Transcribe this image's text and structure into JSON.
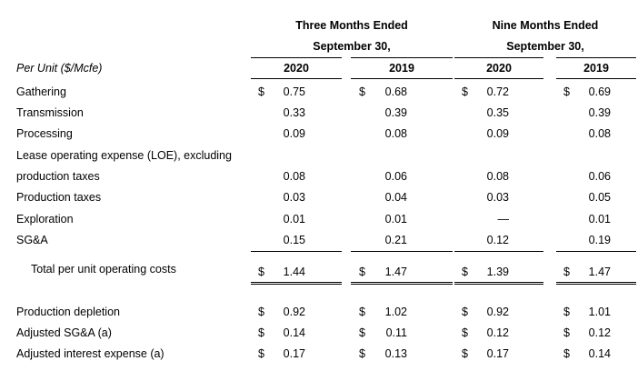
{
  "header": {
    "three_months_line1": "Three Months Ended",
    "three_months_line2": "September 30,",
    "nine_months_line1": "Nine Months Ended",
    "nine_months_line2": "September 30,",
    "per_unit_label": "Per Unit ($/Mcfe)",
    "years": [
      "2020",
      "2019",
      "2020",
      "2019"
    ]
  },
  "rows": [
    {
      "label": "Gathering",
      "dollar": [
        "$",
        "$",
        "$",
        "$"
      ],
      "values": [
        "0.75",
        "0.68",
        "0.72",
        "0.69"
      ]
    },
    {
      "label": "Transmission",
      "dollar": [
        "",
        "",
        "",
        ""
      ],
      "values": [
        "0.33",
        "0.39",
        "0.35",
        "0.39"
      ]
    },
    {
      "label": "Processing",
      "dollar": [
        "",
        "",
        "",
        ""
      ],
      "values": [
        "0.09",
        "0.08",
        "0.09",
        "0.08"
      ]
    },
    {
      "label": "Lease operating expense (LOE), excluding",
      "dollar": [
        "",
        "",
        "",
        ""
      ],
      "values": [
        "",
        "",
        "",
        ""
      ]
    },
    {
      "label": "production taxes",
      "dollar": [
        "",
        "",
        "",
        ""
      ],
      "values": [
        "0.08",
        "0.06",
        "0.08",
        "0.06"
      ]
    },
    {
      "label": "Production taxes",
      "dollar": [
        "",
        "",
        "",
        ""
      ],
      "values": [
        "0.03",
        "0.04",
        "0.03",
        "0.05"
      ]
    },
    {
      "label": "Exploration",
      "dollar": [
        "",
        "",
        "",
        ""
      ],
      "values": [
        "0.01",
        "0.01",
        "—",
        "0.01"
      ]
    },
    {
      "label": "SG&A",
      "dollar": [
        "",
        "",
        "",
        ""
      ],
      "values": [
        "0.15",
        "0.21",
        "0.12",
        "0.19"
      ]
    },
    {
      "label": "Total per unit operating costs",
      "dollar": [
        "$",
        "$",
        "$",
        "$"
      ],
      "values": [
        "1.44",
        "1.47",
        "1.39",
        "1.47"
      ]
    },
    {
      "label": "Production depletion",
      "dollar": [
        "$",
        "$",
        "$",
        "$"
      ],
      "values": [
        "0.92",
        "1.02",
        "0.92",
        "1.01"
      ]
    },
    {
      "label": "Adjusted SG&A (a)",
      "dollar": [
        "$",
        "$",
        "$",
        "$"
      ],
      "values": [
        "0.14",
        "0.11",
        "0.12",
        "0.12"
      ]
    },
    {
      "label": "Adjusted interest expense (a)",
      "dollar": [
        "$",
        "$",
        "$",
        "$"
      ],
      "values": [
        "0.17",
        "0.13",
        "0.17",
        "0.14"
      ]
    }
  ]
}
